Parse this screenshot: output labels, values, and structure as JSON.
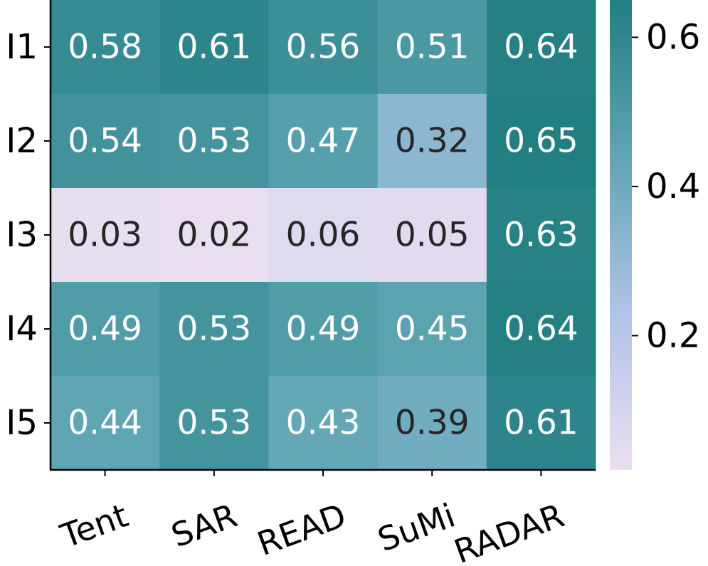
{
  "chart_data": {
    "type": "heatmap",
    "rows": [
      "I1",
      "I2",
      "I3",
      "I4",
      "I5"
    ],
    "categories": [
      "Tent",
      "SAR",
      "READ",
      "SuMi",
      "RADAR"
    ],
    "values": [
      [
        0.58,
        0.61,
        0.56,
        0.51,
        0.64
      ],
      [
        0.54,
        0.53,
        0.47,
        0.32,
        0.65
      ],
      [
        0.03,
        0.02,
        0.06,
        0.05,
        0.63
      ],
      [
        0.49,
        0.53,
        0.49,
        0.45,
        0.64
      ],
      [
        0.44,
        0.53,
        0.43,
        0.39,
        0.61
      ]
    ],
    "colormap": [
      "#eadff0",
      "#b0c3e8",
      "#5fa5b3",
      "#217e81"
    ],
    "colorbar": {
      "lim": [
        0.02,
        0.65
      ],
      "ticks": [
        0.2,
        0.4,
        0.6
      ]
    }
  }
}
